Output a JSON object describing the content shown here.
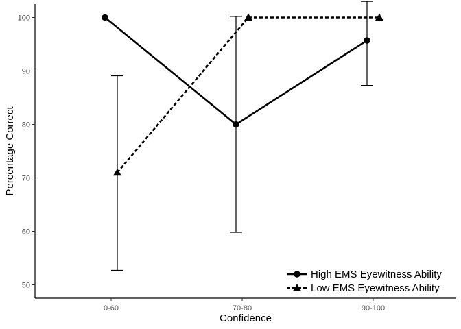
{
  "chart_data": {
    "type": "line",
    "title": "",
    "xlabel": "Confidence",
    "ylabel": "Percentage Correct",
    "categories": [
      "0-60",
      "70-80",
      "90-100"
    ],
    "ylim": [
      47.5,
      102.5
    ],
    "yticks": [
      50,
      60,
      70,
      80,
      90,
      100
    ],
    "grid": false,
    "legend_position": "bottom-right",
    "series": [
      {
        "name": "High EMS Eyewitness Ability",
        "values": [
          100,
          80,
          95.7
        ],
        "error_low": [
          null,
          59.8,
          87.3
        ],
        "error_high": [
          null,
          100.2,
          103
        ],
        "marker": "circle",
        "linestyle": "solid",
        "color": "#000000"
      },
      {
        "name": "Low EMS Eyewitness Ability",
        "values": [
          71,
          100,
          100
        ],
        "error_low": [
          52.7,
          null,
          null
        ],
        "error_high": [
          89.1,
          null,
          null
        ],
        "marker": "triangle",
        "linestyle": "dashed",
        "color": "#000000"
      }
    ]
  }
}
